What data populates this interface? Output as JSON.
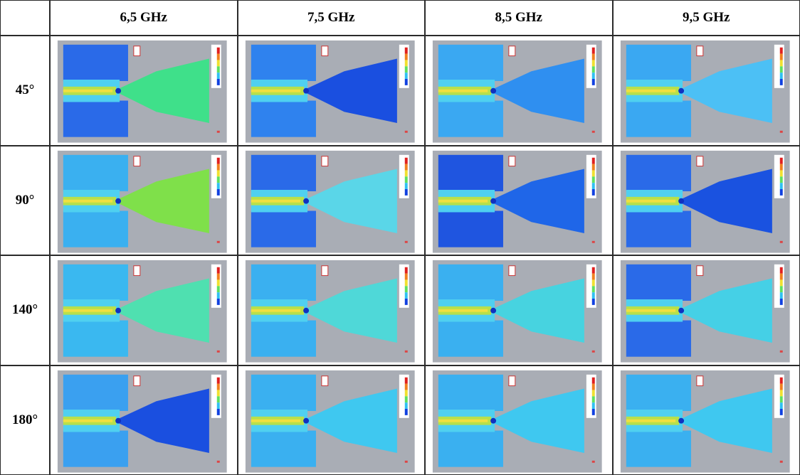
{
  "table": {
    "columns": [
      "6,5 GHz",
      "7,5 GHz",
      "8,5 GHz",
      "9,5 GHz"
    ],
    "rows": [
      "45°",
      "90°",
      "140°",
      "180°"
    ]
  }
}
